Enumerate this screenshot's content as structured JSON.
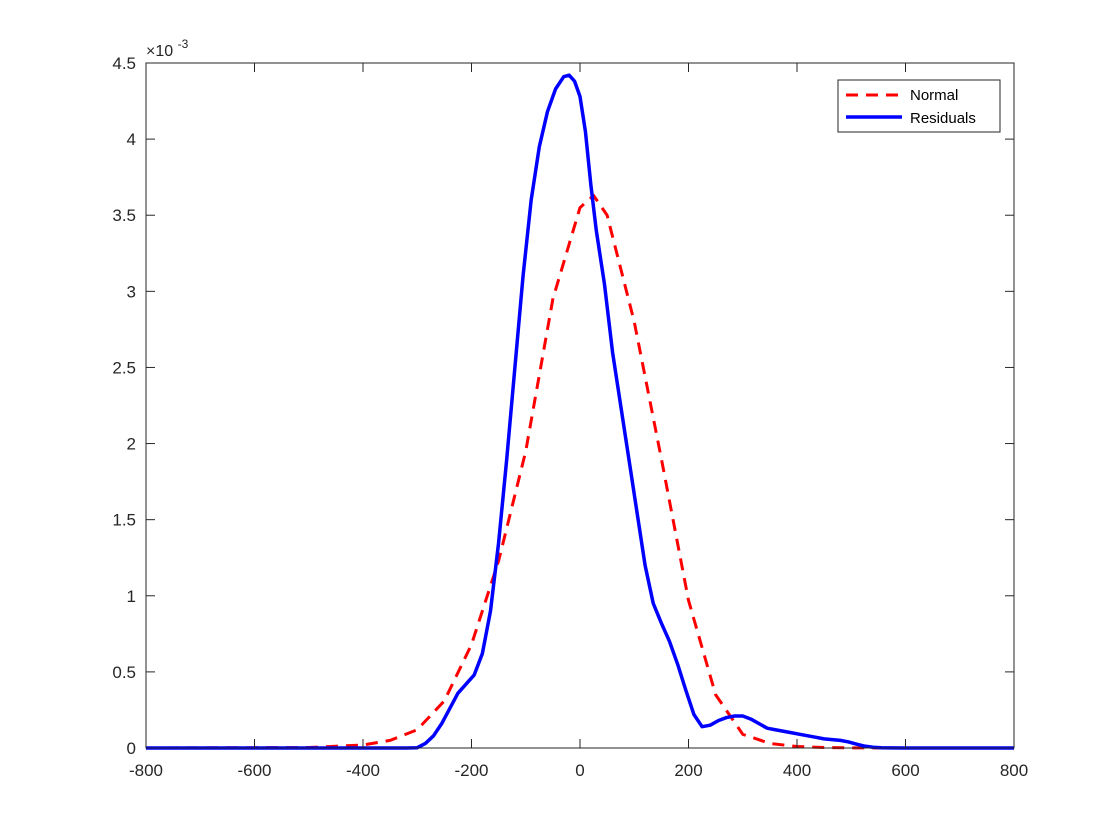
{
  "chart_data": {
    "type": "line",
    "title": "",
    "xlabel": "",
    "ylabel": "",
    "xlim": [
      -800,
      800
    ],
    "ylim": [
      0,
      4.5
    ],
    "y_exponent_label": "×10",
    "y_exponent": "-3",
    "grid": false,
    "legend_placement": "top-right",
    "xticks": [
      "-800",
      "-600",
      "-400",
      "-200",
      "0",
      "200",
      "400",
      "600",
      "800"
    ],
    "yticks": [
      "0",
      "0.5",
      "1",
      "1.5",
      "2",
      "2.5",
      "3",
      "3.5",
      "4",
      "4.5"
    ],
    "series": [
      {
        "name": "Normal",
        "color": "#ff0000",
        "style": "dashed",
        "x": [
          -800,
          -500,
          -400,
          -350,
          -300,
          -250,
          -200,
          -150,
          -100,
          -50,
          0,
          25,
          50,
          100,
          150,
          200,
          250,
          300,
          350,
          400,
          450,
          500,
          600,
          800
        ],
        "y": [
          0,
          0.003,
          0.02,
          0.05,
          0.12,
          0.31,
          0.68,
          1.23,
          1.95,
          2.95,
          3.55,
          3.63,
          3.5,
          2.8,
          1.9,
          0.97,
          0.35,
          0.09,
          0.03,
          0.01,
          0.003,
          0.001,
          0,
          0
        ]
      },
      {
        "name": "Residuals",
        "color": "#0000ff",
        "style": "solid",
        "x": [
          -800,
          -400,
          -320,
          -300,
          -285,
          -270,
          -255,
          -240,
          -225,
          -210,
          -195,
          -180,
          -165,
          -150,
          -135,
          -120,
          -105,
          -90,
          -75,
          -60,
          -45,
          -30,
          -20,
          -10,
          0,
          10,
          20,
          30,
          45,
          60,
          75,
          90,
          105,
          120,
          135,
          150,
          165,
          180,
          195,
          210,
          225,
          240,
          255,
          270,
          285,
          300,
          315,
          330,
          345,
          360,
          375,
          390,
          405,
          420,
          435,
          450,
          465,
          480,
          495,
          510,
          525,
          540,
          555,
          570,
          600,
          800
        ],
        "y": [
          0,
          0,
          0,
          0.002,
          0.03,
          0.08,
          0.16,
          0.26,
          0.36,
          0.42,
          0.48,
          0.62,
          0.9,
          1.35,
          1.9,
          2.5,
          3.1,
          3.6,
          3.95,
          4.18,
          4.33,
          4.41,
          4.42,
          4.38,
          4.28,
          4.05,
          3.7,
          3.4,
          3.05,
          2.6,
          2.25,
          1.9,
          1.55,
          1.2,
          0.95,
          0.82,
          0.7,
          0.55,
          0.38,
          0.22,
          0.14,
          0.15,
          0.18,
          0.2,
          0.21,
          0.21,
          0.19,
          0.16,
          0.13,
          0.12,
          0.11,
          0.1,
          0.09,
          0.08,
          0.07,
          0.06,
          0.055,
          0.05,
          0.04,
          0.025,
          0.012,
          0.005,
          0.002,
          0.001,
          0,
          0
        ]
      }
    ]
  }
}
